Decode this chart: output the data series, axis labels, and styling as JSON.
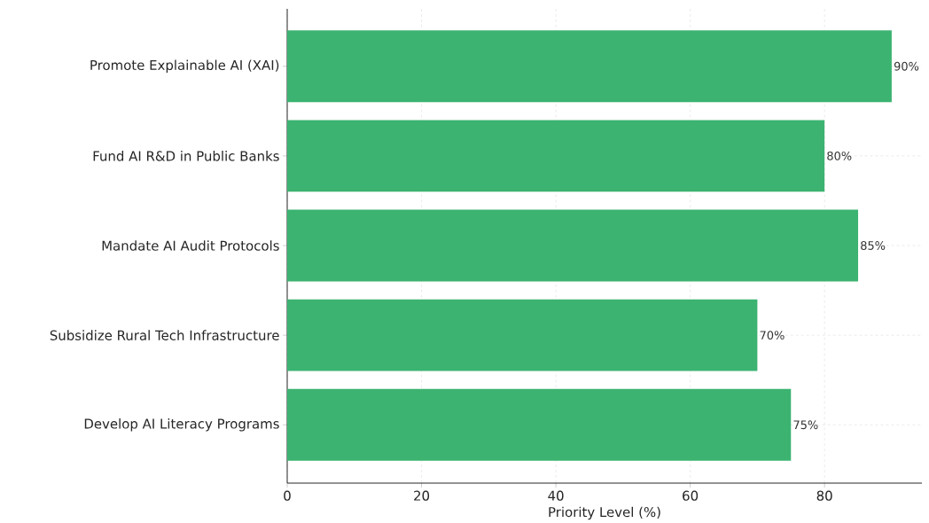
{
  "chart_data": {
    "type": "bar",
    "orientation": "horizontal",
    "xlabel": "Priority Level (%)",
    "categories": [
      "Promote Explainable AI (XAI)",
      "Fund AI R&D in Public Banks",
      "Mandate AI Audit Protocols",
      "Subsidize Rural Tech Infrastructure",
      "Develop AI Literacy Programs"
    ],
    "values": [
      90,
      80,
      85,
      70,
      75
    ],
    "value_labels": [
      "90%",
      "80%",
      "85%",
      "70%",
      "75%"
    ],
    "color": "#3cb371",
    "xlim": [
      0,
      94.5
    ],
    "xticks": [
      0,
      20,
      40,
      60,
      80
    ],
    "grid": true
  }
}
